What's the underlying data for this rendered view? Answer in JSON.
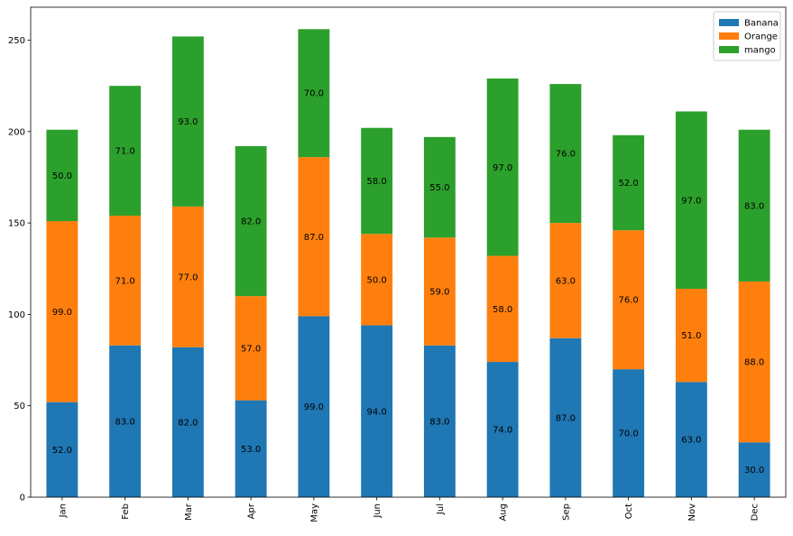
{
  "chart_data": {
    "type": "bar",
    "stacked": true,
    "title": "",
    "xlabel": "",
    "ylabel": "",
    "ylim": [
      0,
      268
    ],
    "yticks": [
      0,
      50,
      100,
      150,
      200,
      250
    ],
    "categories": [
      "Jan",
      "Feb",
      "Mar",
      "Apr",
      "May",
      "Jun",
      "Jul",
      "Aug",
      "Sep",
      "Oct",
      "Nov",
      "Dec"
    ],
    "series": [
      {
        "name": "Banana",
        "color": "#1f77b4",
        "values": [
          52,
          83,
          82,
          53,
          99,
          94,
          83,
          74,
          87,
          70,
          63,
          30
        ]
      },
      {
        "name": "Orange",
        "color": "#ff7f0e",
        "values": [
          99,
          71,
          77,
          57,
          87,
          50,
          59,
          58,
          63,
          76,
          51,
          88
        ]
      },
      {
        "name": "mango",
        "color": "#2ca02c",
        "values": [
          50,
          71,
          93,
          82,
          70,
          58,
          55,
          97,
          76,
          52,
          97,
          83
        ]
      }
    ],
    "data_labels": [
      [
        "52.0",
        "83.0",
        "82.0",
        "53.0",
        "99.0",
        "94.0",
        "83.0",
        "74.0",
        "87.0",
        "70.0",
        "63.0",
        "30.0"
      ],
      [
        "99.0",
        "71.0",
        "77.0",
        "57.0",
        "87.0",
        "50.0",
        "59.0",
        "58.0",
        "63.0",
        "76.0",
        "51.0",
        "88.0"
      ],
      [
        "50.0",
        "71.0",
        "93.0",
        "82.0",
        "70.0",
        "58.0",
        "55.0",
        "97.0",
        "76.0",
        "52.0",
        "97.0",
        "83.0"
      ]
    ],
    "legend": {
      "position": "top-right",
      "entries": [
        "Banana",
        "Orange",
        "mango"
      ]
    },
    "grid": false
  }
}
